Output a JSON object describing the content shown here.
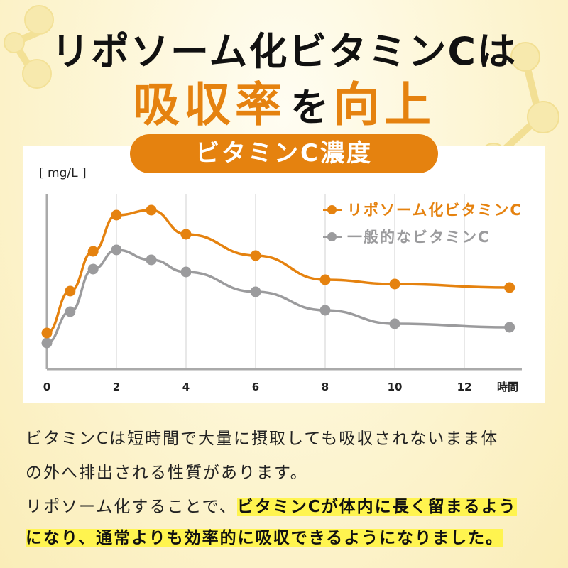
{
  "header": {
    "line1": "リポソーム化ビタミンCは",
    "line2": {
      "part1": "吸収率",
      "part2": "を",
      "part3": "向上"
    }
  },
  "chart_badge": "ビタミンC濃度",
  "colors": {
    "accent_orange": "#e5820f",
    "series_gray": "#9b9b9d",
    "highlight_yellow": "#fff44f",
    "grid": "#d0d0d0"
  },
  "chart_data": {
    "type": "line",
    "title": "ビタミンC濃度",
    "ylabel": "[ mg/L ]",
    "xlabel": "時間",
    "x_ticks": [
      0,
      2,
      4,
      6,
      8,
      10,
      12
    ],
    "x": [
      0,
      0.67,
      1.33,
      2,
      3,
      4,
      6,
      8,
      10,
      13.3
    ],
    "xlim": [
      0,
      13.5
    ],
    "ylim": [
      0,
      250
    ],
    "y_ticks_shown": false,
    "grid": "vertical",
    "legend_position": "upper-right",
    "series": [
      {
        "name": "リポソーム化ビタミンC",
        "color": "#e5820f",
        "values": [
          51,
          110,
          166,
          217,
          224,
          190,
          160,
          126,
          120,
          115
        ]
      },
      {
        "name": "一般的なビタミンC",
        "color": "#9b9b9d",
        "values": [
          37,
          81,
          141,
          168,
          154,
          137,
          109,
          83,
          64,
          59
        ]
      }
    ]
  },
  "chart_labels": {
    "unit": "[ mg/L ]",
    "x_unit": "時間",
    "ticks": [
      "0",
      "2",
      "4",
      "6",
      "8",
      "10",
      "12"
    ]
  },
  "legend": [
    {
      "label": "リポソーム化ビタミンC"
    },
    {
      "label": "一般的なビタミンC"
    }
  ],
  "description": {
    "line1": "ビタミンCは短時間で大量に摂取しても吸収されないまま体",
    "line2": "の外へ排出される性質があります。",
    "line3_plain": "リポソーム化することで、",
    "line3_highlight": "ビタミンCが体内に長く留まるよう",
    "line4_highlight": "になり、通常よりも効率的に吸収できるようになりました。"
  }
}
